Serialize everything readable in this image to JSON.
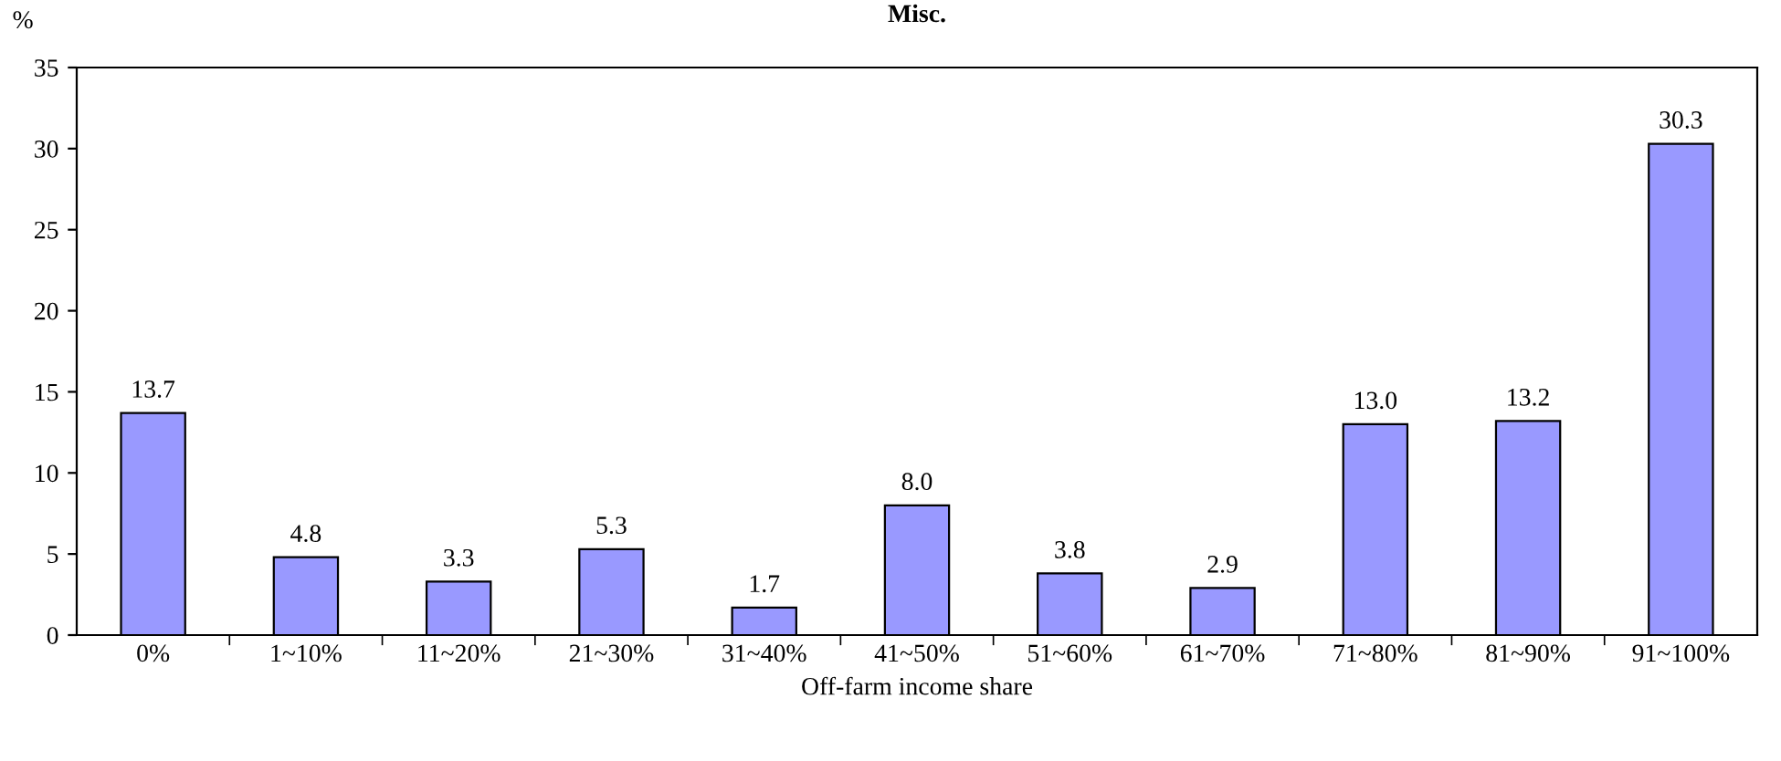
{
  "chart_data": {
    "type": "bar",
    "title": "Misc.",
    "ylabel": "%",
    "xlabel": "Off-farm income share",
    "categories": [
      "0%",
      "1~10%",
      "11~20%",
      "21~30%",
      "31~40%",
      "41~50%",
      "51~60%",
      "61~70%",
      "71~80%",
      "81~90%",
      "91~100%"
    ],
    "values": [
      13.7,
      4.8,
      3.3,
      5.3,
      1.7,
      8.0,
      3.8,
      2.9,
      13.0,
      13.2,
      30.3
    ],
    "value_labels": [
      "13.7",
      "4.8",
      "3.3",
      "5.3",
      "1.7",
      "8.0",
      "3.8",
      "2.9",
      "13.0",
      "13.2",
      "30.3"
    ],
    "color": "#9999ff",
    "ylim": [
      0,
      35
    ],
    "yticks": [
      0,
      5,
      10,
      15,
      20,
      25,
      30,
      35
    ],
    "grid": false,
    "legend": false
  }
}
